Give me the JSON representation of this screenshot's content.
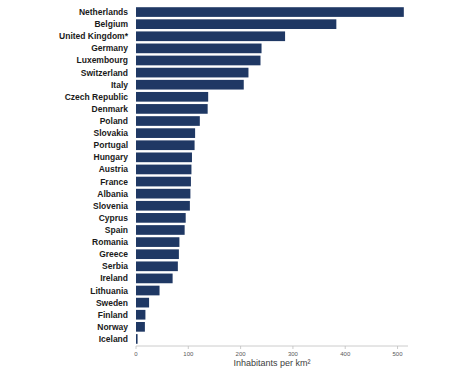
{
  "chart_data": {
    "type": "bar",
    "orientation": "horizontal",
    "categories": [
      "Netherlands",
      "Belgium",
      "United Kingdom*",
      "Germany",
      "Luxembourg",
      "Switzerland",
      "Italy",
      "Czech Republic",
      "Denmark",
      "Poland",
      "Slovakia",
      "Portugal",
      "Hungary",
      "Austria",
      "France",
      "Albania",
      "Slovenia",
      "Cyprus",
      "Spain",
      "Romania",
      "Greece",
      "Serbia",
      "Ireland",
      "Lithuania",
      "Sweden",
      "Finland",
      "Norway",
      "Iceland"
    ],
    "values": [
      512,
      383,
      285,
      240,
      238,
      215,
      206,
      138,
      137,
      122,
      113,
      112,
      107,
      106,
      105,
      104,
      103,
      95,
      93,
      83,
      82,
      80,
      70,
      45,
      25,
      18,
      17,
      3
    ],
    "color": "#1f3864",
    "x_label": "Inhabitants per km²",
    "xlim": [
      0,
      520
    ],
    "xticks": [
      0,
      100,
      200,
      300,
      400,
      500
    ],
    "grid": false
  }
}
